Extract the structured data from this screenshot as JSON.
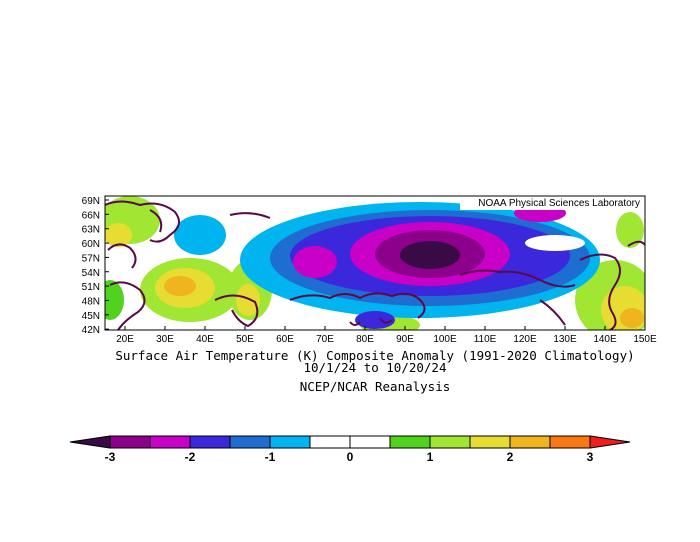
{
  "map": {
    "credit": "NOAA Physical Sciences Laboratory",
    "lat_ticks": [
      "69N",
      "66N",
      "63N",
      "60N",
      "57N",
      "54N",
      "51N",
      "48N",
      "45N",
      "42N"
    ],
    "lon_ticks": [
      "20E",
      "30E",
      "40E",
      "50E",
      "60E",
      "70E",
      "80E",
      "90E",
      "100E",
      "110E",
      "120E",
      "130E",
      "140E",
      "150E"
    ],
    "lat_range": [
      42,
      70
    ],
    "lon_range": [
      15,
      150
    ]
  },
  "titles": {
    "line1": "Surface Air Temperature (K) Composite Anomaly (1991-2020 Climatology)",
    "line2": "10/1/24  to 10/20/24",
    "line3": "NCEP/NCAR Reanalysis"
  },
  "colorbar": {
    "colors": [
      "#3a0a46",
      "#8c008c",
      "#c800c8",
      "#3c28dc",
      "#1e6ed2",
      "#00b4f0",
      "#ffffff",
      "#ffffff",
      "#50d21e",
      "#a0e632",
      "#e6dc32",
      "#f0b41e",
      "#fa7814",
      "#f01e1e"
    ],
    "labels": [
      "-3",
      "-2",
      "-1",
      "0",
      "1",
      "2",
      "3"
    ]
  },
  "colors": {
    "coast": "#5a0a4a",
    "frame": "#000000"
  }
}
